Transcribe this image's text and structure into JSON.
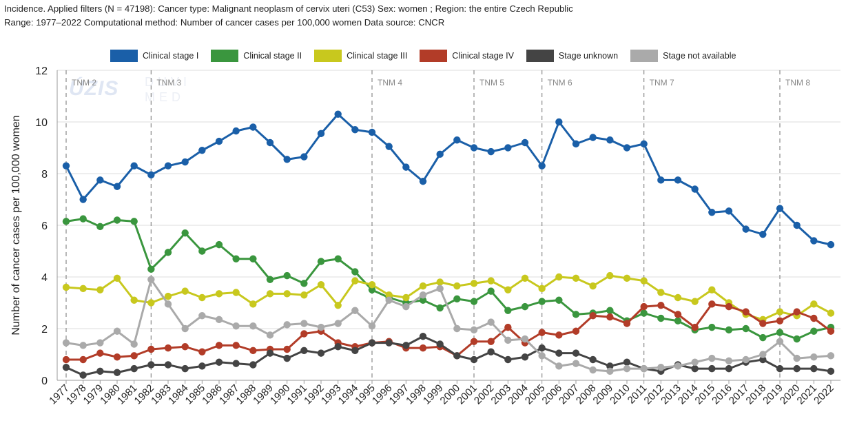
{
  "header": {
    "line1": "Incidence. Applied filters (N = 47198): Cancer type: Malignant neoplasm of cervix uteri (C53) Sex: women ; Region: the entire Czech Republic",
    "line2": "Range: 1977–2022 Computational method: Number of cancer cases per 100,000 women Data source: CNCR"
  },
  "watermark": {
    "logo": "ÚZIS",
    "text1": "DUVI",
    "text2": "MED"
  },
  "chart_data": {
    "type": "line",
    "title": "",
    "xlabel": "",
    "ylabel": "Number of cancer cases per 100,000 women",
    "ylim": [
      0,
      12
    ],
    "yticks": [
      0,
      2,
      4,
      6,
      8,
      10,
      12
    ],
    "grid": true,
    "legend_position": "top",
    "categories": [
      "1977",
      "1978",
      "1979",
      "1980",
      "1981",
      "1982",
      "1983",
      "1984",
      "1985",
      "1986",
      "1987",
      "1988",
      "1989",
      "1990",
      "1991",
      "1992",
      "1993",
      "1994",
      "1995",
      "1996",
      "1997",
      "1998",
      "1999",
      "2000",
      "2001",
      "2002",
      "2003",
      "2004",
      "2005",
      "2006",
      "2007",
      "2008",
      "2009",
      "2010",
      "2011",
      "2012",
      "2013",
      "2014",
      "2015",
      "2016",
      "2017",
      "2018",
      "2019",
      "2020",
      "2021",
      "2022"
    ],
    "tnm_markers": [
      {
        "label": "TNM 2",
        "year": "1977"
      },
      {
        "label": "TNM 3",
        "year": "1982"
      },
      {
        "label": "TNM 4",
        "year": "1995"
      },
      {
        "label": "TNM 5",
        "year": "2001"
      },
      {
        "label": "TNM 6",
        "year": "2005"
      },
      {
        "label": "TNM 7",
        "year": "2011"
      },
      {
        "label": "TNM 8",
        "year": "2019"
      }
    ],
    "series": [
      {
        "name": "Clinical stage I",
        "color": "#1a5fa8",
        "values": [
          8.3,
          7.0,
          7.75,
          7.5,
          8.3,
          7.95,
          8.3,
          8.45,
          8.9,
          9.25,
          9.65,
          9.8,
          9.2,
          8.55,
          8.65,
          9.55,
          10.3,
          9.7,
          9.6,
          9.05,
          8.25,
          7.7,
          8.75,
          9.3,
          9.0,
          8.85,
          9.0,
          9.2,
          8.3,
          10.0,
          9.15,
          9.4,
          9.3,
          9.0,
          9.15,
          7.75,
          7.75,
          7.4,
          6.5,
          6.55,
          5.85,
          5.65,
          6.65,
          6.0,
          5.4,
          5.25
        ]
      },
      {
        "name": "Clinical stage II",
        "color": "#3a963e",
        "values": [
          6.15,
          6.25,
          5.95,
          6.2,
          6.15,
          4.3,
          4.95,
          5.7,
          5.0,
          5.25,
          4.7,
          4.7,
          3.9,
          4.05,
          3.75,
          4.6,
          4.7,
          4.2,
          3.5,
          3.2,
          3.0,
          3.1,
          2.8,
          3.15,
          3.05,
          3.45,
          2.7,
          2.85,
          3.05,
          3.1,
          2.55,
          2.6,
          2.7,
          2.3,
          2.6,
          2.4,
          2.3,
          1.95,
          2.05,
          1.95,
          2.0,
          1.65,
          1.85,
          1.6,
          1.9,
          2.05
        ]
      },
      {
        "name": "Clinical stage III",
        "color": "#c8c81e",
        "values": [
          3.6,
          3.55,
          3.5,
          3.95,
          3.1,
          3.0,
          3.25,
          3.45,
          3.2,
          3.35,
          3.4,
          2.95,
          3.35,
          3.35,
          3.3,
          3.7,
          2.9,
          3.85,
          3.7,
          3.3,
          3.2,
          3.65,
          3.8,
          3.65,
          3.75,
          3.85,
          3.5,
          3.95,
          3.55,
          4.0,
          3.95,
          3.65,
          4.05,
          3.95,
          3.85,
          3.4,
          3.2,
          3.05,
          3.5,
          3.0,
          2.55,
          2.35,
          2.65,
          2.5,
          2.95,
          2.6
        ]
      },
      {
        "name": "Clinical stage IV",
        "color": "#b23c28",
        "values": [
          0.8,
          0.8,
          1.05,
          0.9,
          0.95,
          1.2,
          1.25,
          1.3,
          1.1,
          1.35,
          1.35,
          1.15,
          1.2,
          1.2,
          1.8,
          1.9,
          1.45,
          1.3,
          1.45,
          1.5,
          1.25,
          1.25,
          1.3,
          0.95,
          1.5,
          1.5,
          2.05,
          1.45,
          1.85,
          1.75,
          1.9,
          2.5,
          2.45,
          2.2,
          2.85,
          2.9,
          2.55,
          2.05,
          2.95,
          2.85,
          2.65,
          2.2,
          2.3,
          2.65,
          2.4,
          1.9
        ]
      },
      {
        "name": "Stage unknown",
        "color": "#444444",
        "values": [
          0.5,
          0.2,
          0.35,
          0.3,
          0.45,
          0.6,
          0.6,
          0.45,
          0.55,
          0.7,
          0.65,
          0.6,
          1.05,
          0.85,
          1.15,
          1.05,
          1.3,
          1.15,
          1.45,
          1.45,
          1.35,
          1.7,
          1.4,
          0.95,
          0.8,
          1.1,
          0.8,
          0.9,
          1.25,
          1.05,
          1.05,
          0.8,
          0.55,
          0.7,
          0.45,
          0.35,
          0.6,
          0.45,
          0.45,
          0.45,
          0.7,
          0.8,
          0.45,
          0.45,
          0.45,
          0.35
        ]
      },
      {
        "name": "Stage not available",
        "color": "#aaaaaa",
        "values": [
          1.45,
          1.35,
          1.45,
          1.9,
          1.4,
          3.9,
          2.95,
          2.0,
          2.5,
          2.35,
          2.1,
          2.1,
          1.75,
          2.15,
          2.2,
          2.05,
          2.2,
          2.7,
          2.1,
          3.1,
          2.85,
          3.3,
          3.55,
          2.0,
          1.95,
          2.25,
          1.55,
          1.6,
          0.95,
          0.55,
          0.65,
          0.4,
          0.35,
          0.45,
          0.45,
          0.5,
          0.55,
          0.7,
          0.85,
          0.75,
          0.8,
          1.0,
          1.5,
          0.85,
          0.9,
          0.95
        ]
      }
    ]
  }
}
